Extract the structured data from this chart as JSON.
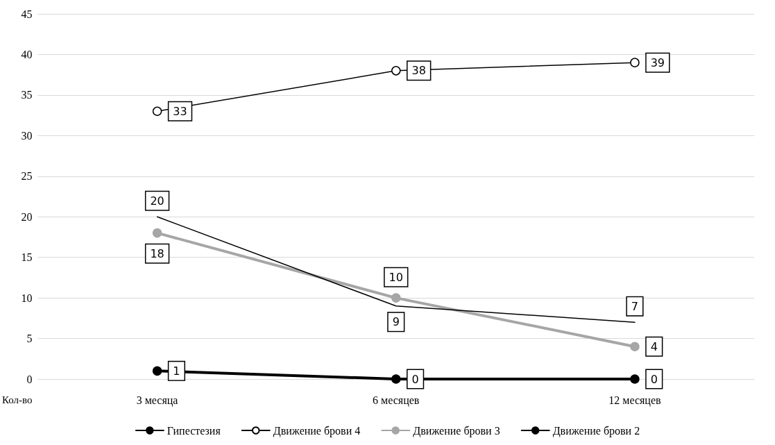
{
  "chart_data": {
    "type": "line",
    "xlabel": "Кол-во",
    "categories": [
      "3 месяца",
      "6 месяцев",
      "12 месяцев"
    ],
    "series": [
      {
        "name": "Гипестезия",
        "color": "#000000",
        "values": [
          20,
          9,
          7
        ],
        "marker": "none"
      },
      {
        "name": "Движение брови 4",
        "color": "#000000",
        "values": [
          33,
          38,
          39
        ]
      },
      {
        "name": "Движение брови 3",
        "color": "#a6a6a6",
        "values": [
          18,
          10,
          4
        ]
      },
      {
        "name": "Движение брови 2",
        "color": "#000000",
        "values": [
          1,
          0,
          0
        ]
      }
    ],
    "ylim": [
      0,
      45
    ],
    "yticks": [
      0,
      5,
      10,
      15,
      20,
      25,
      30,
      35,
      40,
      45
    ],
    "grid": "y",
    "legend": "bottom",
    "marker": "circle",
    "line_style": "solid",
    "data_labels": true
  }
}
